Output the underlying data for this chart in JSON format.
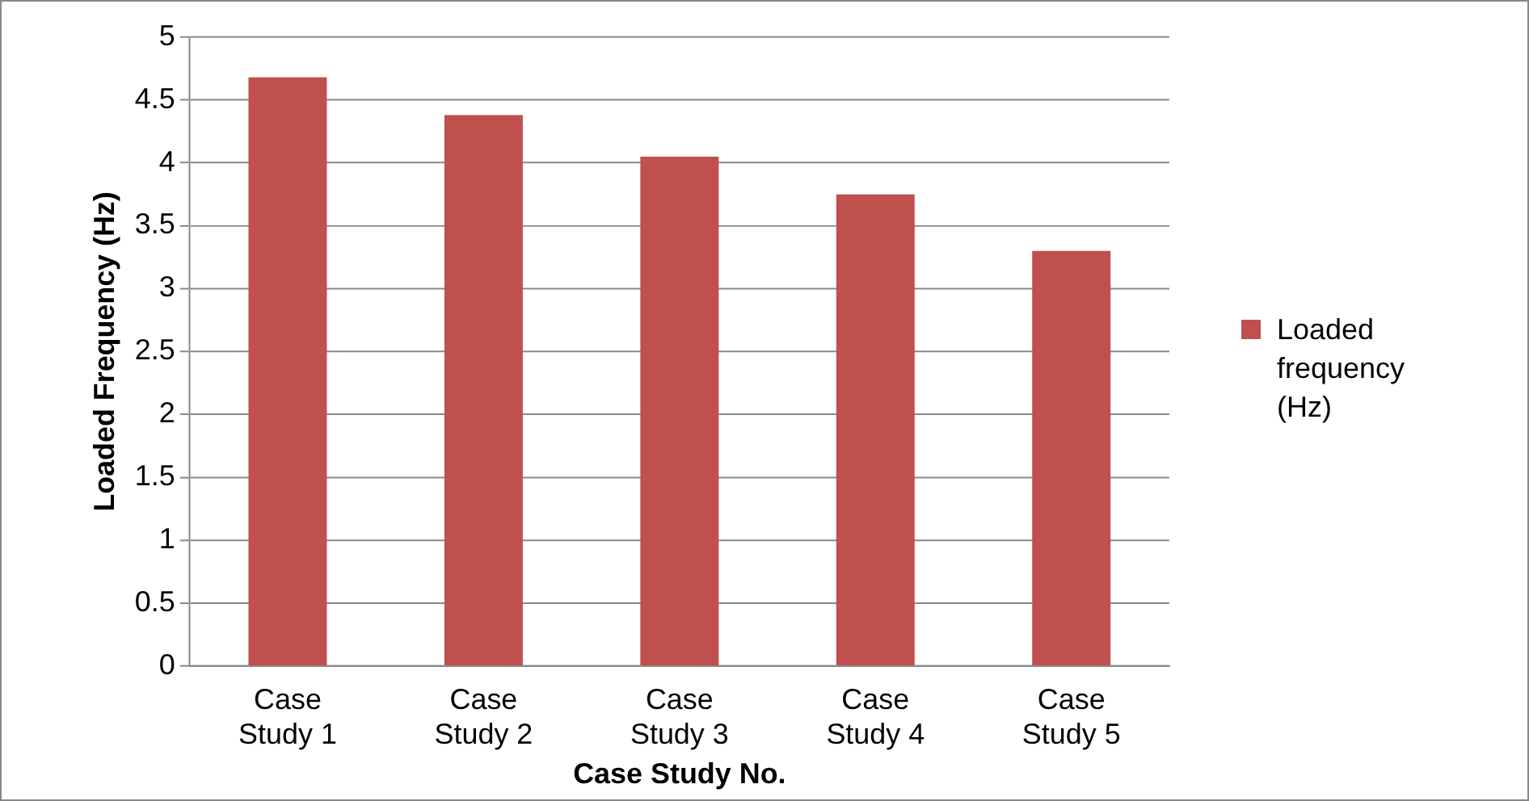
{
  "chart_data": {
    "type": "bar",
    "xlabel": "Case Study No.",
    "ylabel": "Loaded Frequency (Hz)",
    "categories": [
      "Case Study 1",
      "Case Study 2",
      "Case Study 3",
      "Case Study 4",
      "Case Study 5"
    ],
    "series": [
      {
        "name": "Loaded frequency (Hz)",
        "color": "#c0504d",
        "values": [
          4.68,
          4.38,
          4.05,
          3.75,
          3.3
        ]
      }
    ],
    "ylim": [
      0,
      5
    ],
    "yticks": [
      0,
      0.5,
      1,
      1.5,
      2,
      2.5,
      3,
      3.5,
      4,
      4.5,
      5
    ],
    "grid": "y",
    "legend": "right"
  }
}
